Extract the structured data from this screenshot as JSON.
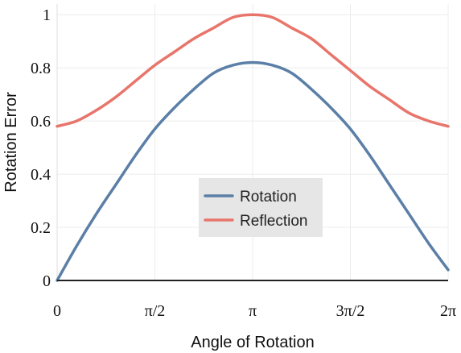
{
  "chart_data": {
    "type": "line",
    "xlabel": "Angle of Rotation",
    "ylabel": "Rotation Error",
    "xlim": [
      0,
      6.283185
    ],
    "ylim": [
      0,
      1.04
    ],
    "grid": true,
    "legend_position": "center",
    "x_ticks": [
      {
        "value": 0,
        "label": "0"
      },
      {
        "value": 1.570796,
        "label": "π/2"
      },
      {
        "value": 3.141593,
        "label": "π"
      },
      {
        "value": 4.712389,
        "label": "3π/2"
      },
      {
        "value": 6.283185,
        "label": "2π"
      }
    ],
    "y_ticks": [
      {
        "value": 0,
        "label": "0"
      },
      {
        "value": 0.2,
        "label": "0.2"
      },
      {
        "value": 0.4,
        "label": "0.4"
      },
      {
        "value": 0.6,
        "label": "0.6"
      },
      {
        "value": 0.8,
        "label": "0.8"
      },
      {
        "value": 1.0,
        "label": "1"
      }
    ],
    "series": [
      {
        "name": "Rotation",
        "color": "#5b7fa6",
        "x": [
          0,
          0.3142,
          0.6283,
          0.9425,
          1.2566,
          1.5708,
          1.885,
          2.1991,
          2.5133,
          2.8274,
          3.1416,
          3.4558,
          3.7699,
          4.0841,
          4.3982,
          4.7124,
          5.0265,
          5.3407,
          5.6549,
          5.969,
          6.2832
        ],
        "values": [
          0.0,
          0.13,
          0.25,
          0.36,
          0.47,
          0.57,
          0.65,
          0.72,
          0.78,
          0.81,
          0.82,
          0.81,
          0.78,
          0.72,
          0.65,
          0.57,
          0.47,
          0.36,
          0.25,
          0.14,
          0.04
        ]
      },
      {
        "name": "Reflection",
        "color": "#e8756b",
        "x": [
          0,
          0.3142,
          0.6283,
          0.9425,
          1.2566,
          1.5708,
          1.885,
          2.1991,
          2.5133,
          2.8274,
          3.1416,
          3.4558,
          3.7699,
          4.0841,
          4.3982,
          4.7124,
          5.0265,
          5.3407,
          5.6549,
          5.969,
          6.2832
        ],
        "values": [
          0.58,
          0.6,
          0.64,
          0.69,
          0.75,
          0.81,
          0.86,
          0.91,
          0.95,
          0.99,
          1.0,
          0.99,
          0.95,
          0.91,
          0.85,
          0.79,
          0.73,
          0.68,
          0.63,
          0.6,
          0.58
        ]
      }
    ]
  }
}
